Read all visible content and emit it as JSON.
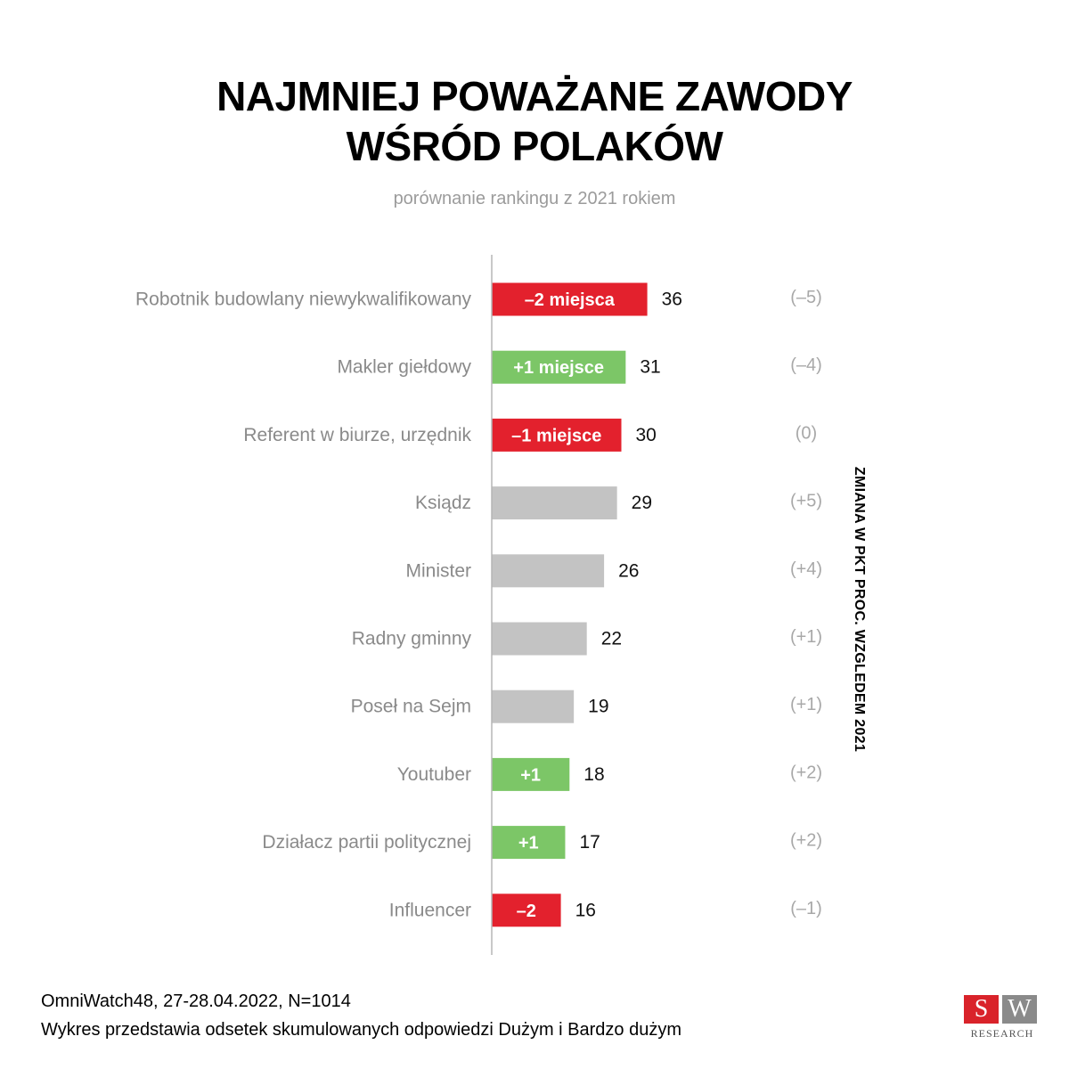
{
  "title_line1": "NAJMNIEJ POWAŻANE ZAWODY",
  "title_line2": "WŚRÓD POLAKÓW",
  "subtitle": "porównanie rankingu z 2021 rokiem",
  "side_label": "ZMIANA W PKT PROC. WZGLEDEM 2021",
  "footer": {
    "line1": "OmniWatch48, 27-28.04.2022, N=1014",
    "line2": "Wykres przedstawia odsetek skumulowanych odpowiedzi Dużym i Bardzo dużym"
  },
  "logo": {
    "s": "S",
    "w": "W",
    "text": "RESEARCH"
  },
  "colors": {
    "red": "#e3212d",
    "green": "#7cc667",
    "gray": "#c3c3c3",
    "label": "#8a8a8a",
    "change": "#a8a8a8"
  },
  "chart_data": {
    "type": "bar",
    "orientation": "horizontal",
    "categories": [
      "Robotnik budowlany niewykwalifikowany",
      "Makler giełdowy",
      "Referent w biurze, urzędnik",
      "Ksiądz",
      "Minister",
      "Radny gminny",
      "Poseł na Sejm",
      "Youtuber",
      "Działacz partii politycznej",
      "Influencer"
    ],
    "values": [
      36,
      31,
      30,
      29,
      26,
      22,
      19,
      18,
      17,
      16
    ],
    "rank_change_labels": [
      "–2 miejsca",
      "+1 miejsce",
      "–1 miejsce",
      "",
      "",
      "",
      "",
      "+1",
      "+1",
      "–2"
    ],
    "bar_colors": [
      "red",
      "green",
      "red",
      "gray",
      "gray",
      "gray",
      "gray",
      "green",
      "green",
      "red"
    ],
    "change_vs_2021": [
      "(–5)",
      "(–4)",
      "(0)",
      "(+5)",
      "(+4)",
      "(+1)",
      "(+1)",
      "(+2)",
      "(+2)",
      "(–1)"
    ]
  }
}
